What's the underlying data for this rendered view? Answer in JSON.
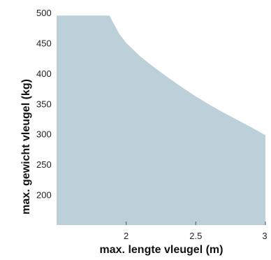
{
  "chart_data": {
    "type": "area",
    "title": "",
    "xlabel": "max. lengte vleugel (m)",
    "ylabel": "max. gewicht vleugel (kg)",
    "xlim": [
      1.5,
      3.0
    ],
    "ylim": [
      150,
      500
    ],
    "x_ticks": [
      2,
      2.5,
      3
    ],
    "x_tick_labels": [
      "2",
      "2.5",
      "3"
    ],
    "y_ticks": [
      200,
      250,
      300,
      350,
      400,
      450,
      500
    ],
    "y_tick_labels": [
      "200",
      "250",
      "300",
      "350",
      "400",
      "450",
      "500"
    ],
    "grid": false,
    "legend": "none",
    "fill_color": "#bcd0da",
    "series": [
      {
        "x": [
          1.5,
          1.88,
          1.95,
          2.0,
          2.1,
          2.2,
          2.3,
          2.4,
          2.5,
          2.6,
          2.7,
          2.8,
          2.9,
          3.0
        ],
        "values": [
          495,
          495,
          465,
          450,
          428,
          410,
          393,
          377,
          362,
          348,
          335,
          323,
          311,
          298
        ]
      }
    ]
  }
}
